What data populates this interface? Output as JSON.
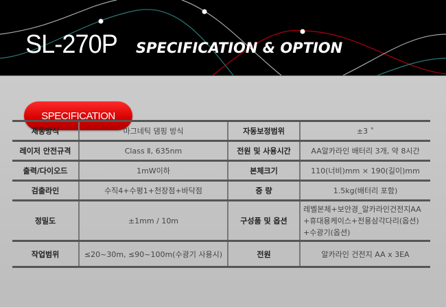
{
  "header": {
    "model": "SL-270P",
    "subtitle": "SPECIFICATION & OPTION"
  },
  "section_button": "SPECIFICATION",
  "specs": [
    {
      "k1": "제동방식",
      "v1": "마그네틱 댐핑 방식",
      "k2": "자동보정범위",
      "v2": "±3 ˚"
    },
    {
      "k1": "레이저 안전규격",
      "v1": "Class Ⅱ, 635nm",
      "k2": "전원 및 사용시간",
      "v2": "AA알카라인 배터리 3개, 약 8시간"
    },
    {
      "k1": "출력/다이오드",
      "v1": "1mW이하",
      "k2": "본체크기",
      "v2": "110(너비)mm × 190(길이)mm"
    },
    {
      "k1": "검출라인",
      "v1": "수직4+수평1+천장점+바닥점",
      "k2": "중 량",
      "v2": "1.5kg(배터리 포함)"
    },
    {
      "k1": "정밀도",
      "v1": "±1mm / 10m",
      "k2": "구성품 및 옵션",
      "v2_lines": [
        "레벨본체+보안경_알카라인건전지AA",
        "+휴대용케이스+전용삼각다리(옵션)",
        "+수광기(옵션)"
      ]
    },
    {
      "k1": "작업범위",
      "v1": "≤20~30m, ≤90~100m(수광기 사용시)",
      "k2": "전원",
      "v2": "알카라인 건전지 AA x 3EA"
    }
  ]
}
